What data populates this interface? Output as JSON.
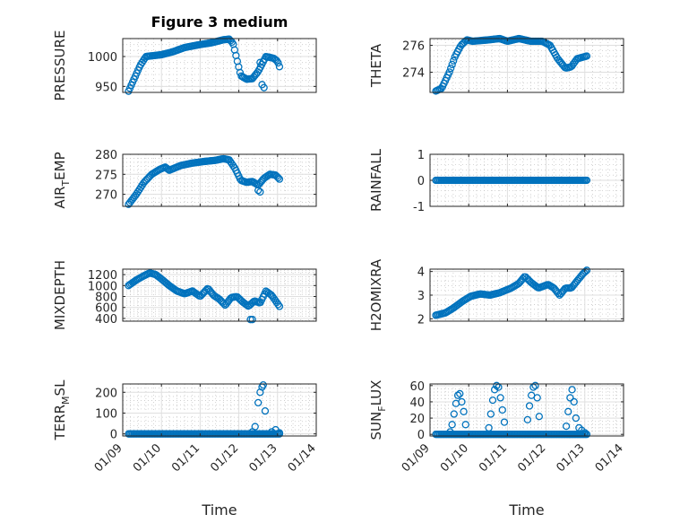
{
  "figure_title": "Figure 3 medium",
  "x_axis_title": "Time",
  "x_tick_labels": [
    "01/09",
    "01/10",
    "01/11",
    "01/12",
    "01/13",
    "01/14"
  ],
  "marker_color": "#0072bd",
  "chart_data": [
    {
      "type": "scatter",
      "ylabel": "PRESSURE",
      "xlim": [
        0,
        5
      ],
      "ylim": [
        940,
        1030
      ],
      "yticks": [
        950,
        1000
      ],
      "curve": [
        [
          0.15,
          942
        ],
        [
          0.45,
          985
        ],
        [
          0.6,
          1000
        ],
        [
          1.0,
          1003
        ],
        [
          1.3,
          1008
        ],
        [
          1.6,
          1015
        ],
        [
          2.0,
          1020
        ],
        [
          2.3,
          1023
        ],
        [
          2.6,
          1028
        ],
        [
          2.75,
          1029
        ],
        [
          2.85,
          1022
        ],
        [
          2.95,
          995
        ],
        [
          3.05,
          968
        ],
        [
          3.2,
          962
        ],
        [
          3.35,
          963
        ],
        [
          3.5,
          975
        ],
        [
          3.7,
          1000
        ],
        [
          3.9,
          997
        ],
        [
          4.0,
          992
        ],
        [
          4.05,
          983
        ]
      ],
      "extra": [
        [
          3.55,
          990
        ],
        [
          3.6,
          953
        ],
        [
          3.65,
          948
        ]
      ],
      "xrange": [
        0.15,
        4.05
      ]
    },
    {
      "type": "scatter",
      "ylabel": "THETA",
      "xlim": [
        0,
        5
      ],
      "ylim": [
        272.5,
        276.5
      ],
      "yticks": [
        274,
        276
      ],
      "curve": [
        [
          0.15,
          272.6
        ],
        [
          0.3,
          272.8
        ],
        [
          0.5,
          274
        ],
        [
          0.65,
          275.2
        ],
        [
          0.8,
          276.0
        ],
        [
          0.95,
          276.4
        ],
        [
          1.1,
          276.3
        ],
        [
          1.5,
          276.4
        ],
        [
          1.8,
          276.5
        ],
        [
          2.0,
          276.3
        ],
        [
          2.3,
          276.5
        ],
        [
          2.6,
          276.3
        ],
        [
          2.9,
          276.3
        ],
        [
          3.1,
          276.0
        ],
        [
          3.3,
          275.0
        ],
        [
          3.5,
          274.3
        ],
        [
          3.65,
          274.4
        ],
        [
          3.8,
          275.0
        ],
        [
          4.05,
          275.2
        ]
      ],
      "extra": [],
      "xrange": [
        0.15,
        4.05
      ]
    },
    {
      "type": "scatter",
      "ylabel": "AIR_TEMP",
      "xlim": [
        0,
        5
      ],
      "ylim": [
        267,
        280
      ],
      "yticks": [
        270,
        275,
        280
      ],
      "curve": [
        [
          0.15,
          267.5
        ],
        [
          0.35,
          270
        ],
        [
          0.55,
          273
        ],
        [
          0.75,
          275
        ],
        [
          0.95,
          276.2
        ],
        [
          1.1,
          276.8
        ],
        [
          1.2,
          276.0
        ],
        [
          1.5,
          277.2
        ],
        [
          1.8,
          277.8
        ],
        [
          2.1,
          278.2
        ],
        [
          2.4,
          278.5
        ],
        [
          2.6,
          278.9
        ],
        [
          2.75,
          278.6
        ],
        [
          2.9,
          276.5
        ],
        [
          3.05,
          273.5
        ],
        [
          3.2,
          273.0
        ],
        [
          3.35,
          273.2
        ],
        [
          3.5,
          272.3
        ],
        [
          3.65,
          274.0
        ],
        [
          3.8,
          275.0
        ],
        [
          3.95,
          274.8
        ],
        [
          4.05,
          273.8
        ]
      ],
      "extra": [
        [
          3.5,
          271.0
        ],
        [
          3.55,
          270.6
        ]
      ],
      "xrange": [
        0.15,
        4.05
      ]
    },
    {
      "type": "scatter",
      "ylabel": "RAINFALL",
      "xlim": [
        0,
        5
      ],
      "ylim": [
        -1,
        1
      ],
      "yticks": [
        -1,
        0,
        1
      ],
      "curve": [
        [
          0.15,
          0
        ],
        [
          4.05,
          0
        ]
      ],
      "extra": [],
      "xrange": [
        0.15,
        4.05
      ]
    },
    {
      "type": "scatter",
      "ylabel": "MIXDEPTH",
      "xlim": [
        0,
        5
      ],
      "ylim": [
        350,
        1300
      ],
      "yticks": [
        400,
        600,
        800,
        1000,
        1200
      ],
      "curve": [
        [
          0.15,
          1000
        ],
        [
          0.35,
          1100
        ],
        [
          0.55,
          1180
        ],
        [
          0.7,
          1230
        ],
        [
          0.85,
          1200
        ],
        [
          1.0,
          1120
        ],
        [
          1.2,
          1000
        ],
        [
          1.4,
          900
        ],
        [
          1.6,
          850
        ],
        [
          1.8,
          900
        ],
        [
          2.0,
          800
        ],
        [
          2.2,
          950
        ],
        [
          2.35,
          820
        ],
        [
          2.5,
          750
        ],
        [
          2.65,
          640
        ],
        [
          2.8,
          780
        ],
        [
          2.95,
          800
        ],
        [
          3.1,
          700
        ],
        [
          3.25,
          620
        ],
        [
          3.4,
          720
        ],
        [
          3.55,
          680
        ],
        [
          3.7,
          900
        ],
        [
          3.85,
          820
        ],
        [
          4.05,
          620
        ]
      ],
      "extra": [
        [
          3.3,
          380
        ],
        [
          3.35,
          380
        ]
      ],
      "xrange": [
        0.15,
        4.05
      ]
    },
    {
      "type": "scatter",
      "ylabel": "H2OMIXRA",
      "xlim": [
        0,
        5
      ],
      "ylim": [
        1.9,
        4.1
      ],
      "yticks": [
        2,
        3,
        4
      ],
      "curve": [
        [
          0.15,
          2.15
        ],
        [
          0.4,
          2.25
        ],
        [
          0.6,
          2.45
        ],
        [
          0.85,
          2.75
        ],
        [
          1.05,
          2.95
        ],
        [
          1.3,
          3.05
        ],
        [
          1.55,
          3.0
        ],
        [
          1.8,
          3.1
        ],
        [
          2.1,
          3.3
        ],
        [
          2.3,
          3.5
        ],
        [
          2.45,
          3.8
        ],
        [
          2.6,
          3.55
        ],
        [
          2.8,
          3.3
        ],
        [
          3.05,
          3.45
        ],
        [
          3.2,
          3.3
        ],
        [
          3.35,
          3.0
        ],
        [
          3.5,
          3.3
        ],
        [
          3.65,
          3.3
        ],
        [
          3.8,
          3.6
        ],
        [
          3.95,
          3.9
        ],
        [
          4.05,
          4.05
        ]
      ],
      "extra": [],
      "xrange": [
        0.15,
        4.05
      ]
    },
    {
      "type": "scatter",
      "ylabel": "TERR_MSL",
      "xlim": [
        0,
        5
      ],
      "ylim": [
        -10,
        240
      ],
      "yticks": [
        0,
        100,
        200
      ],
      "curve": [
        [
          0.15,
          0
        ],
        [
          4.05,
          0
        ]
      ],
      "extra": [
        [
          3.35,
          10
        ],
        [
          3.42,
          35
        ],
        [
          3.5,
          150
        ],
        [
          3.55,
          200
        ],
        [
          3.6,
          225
        ],
        [
          3.63,
          235
        ],
        [
          3.68,
          110
        ],
        [
          3.85,
          10
        ],
        [
          3.95,
          20
        ],
        [
          4.05,
          5
        ]
      ],
      "xrange": [
        0.15,
        4.05
      ]
    },
    {
      "type": "scatter",
      "ylabel": "SUN_FLUX",
      "xlim": [
        0,
        5
      ],
      "ylim": [
        -2,
        62
      ],
      "yticks": [
        0,
        20,
        40,
        60
      ],
      "curve": [
        [
          0.15,
          0
        ],
        [
          4.05,
          0
        ]
      ],
      "extra": [
        [
          0.52,
          3
        ],
        [
          0.57,
          12
        ],
        [
          0.62,
          25
        ],
        [
          0.67,
          38
        ],
        [
          0.72,
          48
        ],
        [
          0.77,
          50
        ],
        [
          0.82,
          40
        ],
        [
          0.87,
          28
        ],
        [
          0.92,
          12
        ],
        [
          1.52,
          8
        ],
        [
          1.57,
          25
        ],
        [
          1.62,
          42
        ],
        [
          1.67,
          55
        ],
        [
          1.72,
          60
        ],
        [
          1.77,
          58
        ],
        [
          1.82,
          45
        ],
        [
          1.87,
          30
        ],
        [
          1.92,
          15
        ],
        [
          2.52,
          18
        ],
        [
          2.57,
          35
        ],
        [
          2.62,
          48
        ],
        [
          2.67,
          58
        ],
        [
          2.72,
          60
        ],
        [
          2.77,
          45
        ],
        [
          2.82,
          22
        ],
        [
          3.52,
          10
        ],
        [
          3.57,
          28
        ],
        [
          3.62,
          45
        ],
        [
          3.67,
          55
        ],
        [
          3.72,
          40
        ],
        [
          3.77,
          20
        ],
        [
          3.85,
          8
        ],
        [
          3.92,
          5
        ],
        [
          4.0,
          2
        ]
      ],
      "xrange": [
        0.15,
        4.05
      ]
    }
  ]
}
